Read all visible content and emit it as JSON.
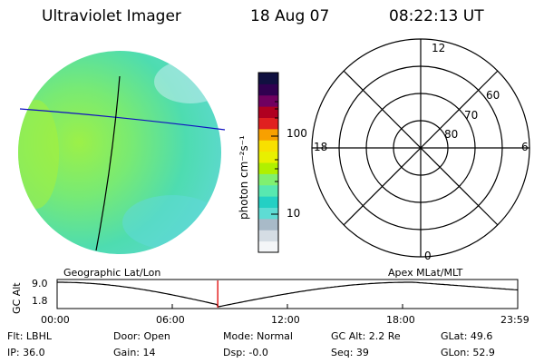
{
  "header": {
    "instrument": "Ultraviolet Imager",
    "date": "18 Aug 07",
    "time": "08:22:13 UT"
  },
  "colorbar": {
    "unit_label": "photon cm⁻²s⁻¹",
    "ticks": [
      "100",
      "10"
    ],
    "colors": [
      "#f4f6f8",
      "#d5dde4",
      "#a8bac8",
      "#5edcd4",
      "#24d0c4",
      "#58e8b0",
      "#80f070",
      "#b0f000",
      "#e8f000",
      "#f8e000",
      "#f8a000",
      "#e02020",
      "#b00020",
      "#700060",
      "#300050",
      "#101040"
    ]
  },
  "polar_plot": {
    "labels": {
      "top": "12",
      "bottom": "0",
      "left": "18",
      "right": "6"
    },
    "ring_labels": [
      "60",
      "70",
      "80"
    ]
  },
  "geo_labels": {
    "left": "Geographic Lat/Lon",
    "right": "Apex MLat/MLT"
  },
  "altitude_plot": {
    "axis_label": "GC Alt",
    "y_ticks": [
      "9.0",
      "1.8"
    ],
    "x_ticks": [
      "00:00",
      "06:00",
      "12:00",
      "18:00",
      "23:59"
    ],
    "current_marker_hour": 8.37
  },
  "status": {
    "filter": "Flt: LBHL",
    "door": "Door: Open",
    "mode": "Mode: Normal",
    "gc_alt": "GC Alt: 2.2 Re",
    "glat": "GLat:  49.6",
    "ip": "IP: 36.0",
    "gain": "Gain: 14",
    "dsp": "Dsp:    -0.0",
    "seq": "Seq: 39",
    "glon": "GLon:  52.9"
  }
}
